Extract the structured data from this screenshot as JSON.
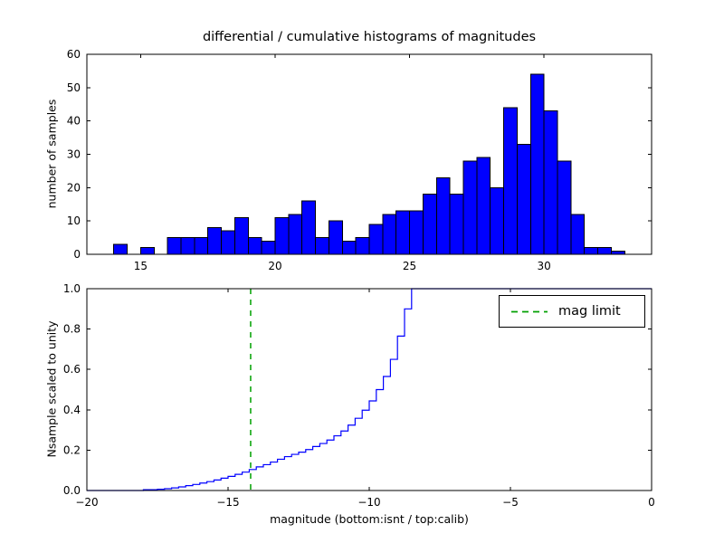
{
  "chart_data": [
    {
      "id": "differential-histogram",
      "type": "bar",
      "title": "differential / cumulative histograms of magnitudes",
      "xlabel": "",
      "ylabel": "number of samples",
      "xlim": [
        13,
        34
      ],
      "ylim": [
        0,
        60
      ],
      "xtick_values": [
        15,
        20,
        25,
        30
      ],
      "xtick_labels": [
        "15",
        "20",
        "25",
        "30"
      ],
      "ytick_values": [
        0,
        10,
        20,
        30,
        40,
        50,
        60
      ],
      "ytick_labels": [
        "0",
        "10",
        "20",
        "30",
        "40",
        "50",
        "60"
      ],
      "grid": false,
      "bin_start": 14.0,
      "bin_width": 0.5,
      "counts": [
        3,
        0,
        2,
        0,
        5,
        5,
        5,
        8,
        7,
        11,
        5,
        4,
        11,
        12,
        16,
        5,
        10,
        4,
        5,
        9,
        12,
        13,
        13,
        18,
        23,
        18,
        28,
        29,
        20,
        44,
        33,
        54,
        43,
        28,
        12,
        2,
        2,
        1
      ],
      "bar_color": "#0000ff",
      "bar_edge_color": "#000000"
    },
    {
      "id": "cumulative-histogram",
      "type": "line",
      "style": "step",
      "title": "",
      "xlabel": "magnitude (bottom:isnt / top:calib)",
      "ylabel": "Nsample scaled to unity",
      "xlim": [
        -20,
        0
      ],
      "ylim": [
        0,
        1
      ],
      "xtick_values": [
        -20,
        -15,
        -10,
        -5,
        0
      ],
      "xtick_labels": [
        "−20",
        "−15",
        "−10",
        "−5",
        "0"
      ],
      "ytick_values": [
        0,
        0.2,
        0.4,
        0.6,
        0.8,
        1.0
      ],
      "ytick_labels": [
        "0.0",
        "0.2",
        "0.4",
        "0.6",
        "0.8",
        "1.0"
      ],
      "grid": false,
      "line_color": "#0000ff",
      "steps": {
        "x": [
          -20,
          -18.0,
          -17.5,
          -17.25,
          -17.0,
          -16.75,
          -16.5,
          -16.25,
          -16.0,
          -15.75,
          -15.5,
          -15.25,
          -15.0,
          -14.75,
          -14.5,
          -14.25,
          -14.0,
          -13.75,
          -13.5,
          -13.25,
          -13.0,
          -12.75,
          -12.5,
          -12.25,
          -12.0,
          -11.75,
          -11.5,
          -11.25,
          -11.0,
          -10.75,
          -10.5,
          -10.25,
          -10.0,
          -9.75,
          -9.5,
          -9.25,
          -9.0,
          -8.75,
          -8.5,
          0
        ],
        "y": [
          0,
          0.004,
          0.006,
          0.009,
          0.013,
          0.018,
          0.024,
          0.03,
          0.037,
          0.044,
          0.052,
          0.061,
          0.07,
          0.08,
          0.091,
          0.104,
          0.117,
          0.128,
          0.141,
          0.155,
          0.168,
          0.179,
          0.19,
          0.203,
          0.218,
          0.233,
          0.25,
          0.271,
          0.295,
          0.324,
          0.358,
          0.398,
          0.444,
          0.5,
          0.565,
          0.65,
          0.765,
          0.9,
          1.0,
          1.0
        ]
      },
      "mag_limit": {
        "x": -14.2,
        "color": "#00a000",
        "linestyle": "dashed",
        "label": "mag limit"
      },
      "legend": {
        "position": "upper right",
        "entries": [
          {
            "label": "mag limit",
            "color": "#00a000",
            "linestyle": "dashed"
          }
        ]
      }
    }
  ]
}
